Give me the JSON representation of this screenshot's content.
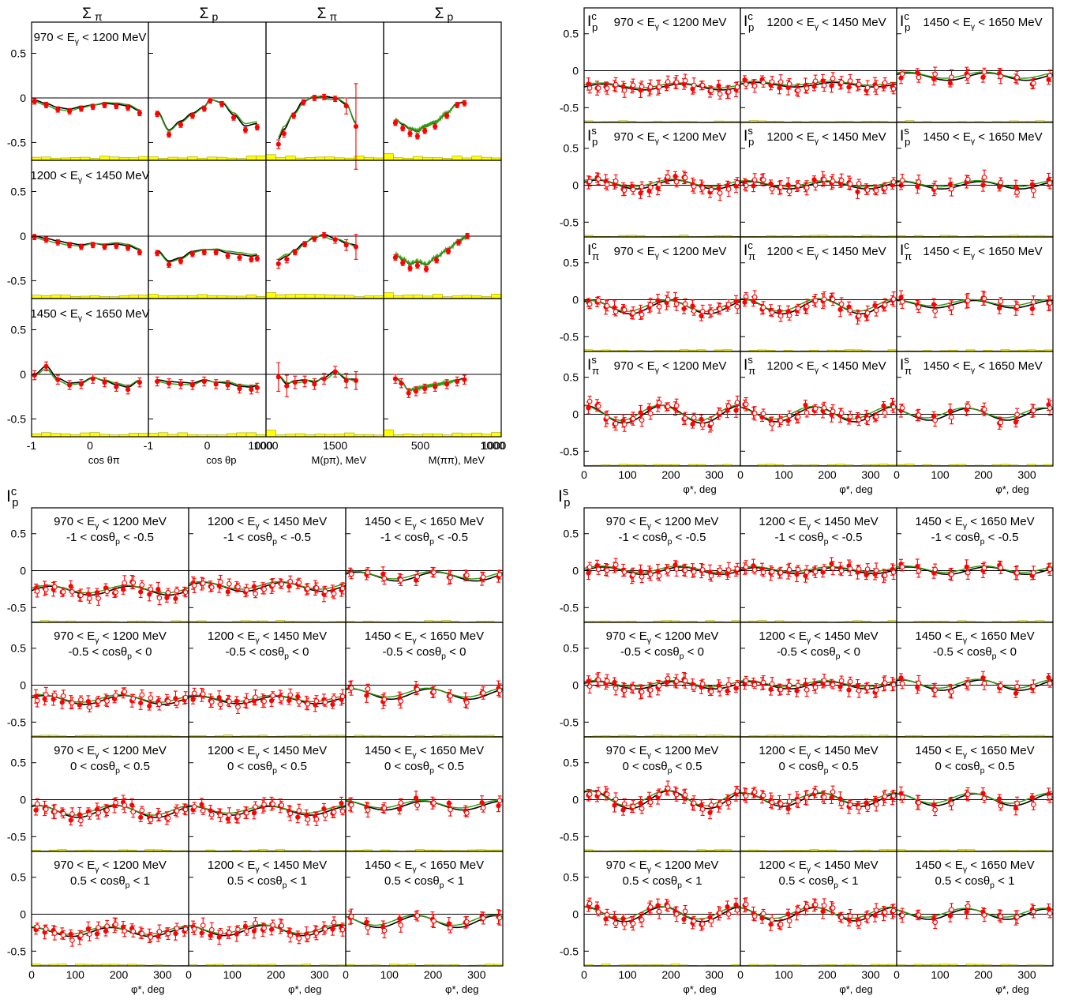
{
  "chart_data": [
    {
      "id": "sigma-block",
      "type": "scatter",
      "rows": [
        "970 < Eγ < 1200 MeV",
        "1200 < Eγ < 1450 MeV",
        "1450 < Eγ < 1650 MeV"
      ],
      "columns": [
        {
          "title": "Σπ",
          "xlabel": "cos θπ",
          "xlim": [
            -1,
            1
          ],
          "xticks": [
            "-1",
            "0"
          ]
        },
        {
          "title": "Σp",
          "xlabel": "cos θp",
          "xlim": [
            -1,
            1
          ],
          "xticks": [
            "-1",
            "0"
          ]
        },
        {
          "title": "Σπ",
          "xlabel": "M(pπ), MeV",
          "xlim": [
            1000,
            1850
          ],
          "xticks": [
            "1000",
            "1500"
          ]
        },
        {
          "title": "Σp",
          "xlabel": "M(ππ), MeV",
          "xlim": [
            250,
            1050
          ],
          "xticks": [
            "500",
            "1000"
          ]
        }
      ],
      "ylim": [
        -0.7,
        0.85
      ],
      "yticks": [
        "0.5",
        "0",
        "-0.5"
      ],
      "panels": [
        [
          {
            "x": [
              -0.95,
              -0.75,
              -0.55,
              -0.35,
              -0.15,
              0.05,
              0.25,
              0.45,
              0.65,
              0.85
            ],
            "y": [
              -0.04,
              -0.08,
              -0.13,
              -0.15,
              -0.12,
              -0.1,
              -0.08,
              -0.09,
              -0.11,
              -0.17
            ],
            "err": 0.03
          },
          {
            "x": [
              -0.85,
              -0.65,
              -0.45,
              -0.25,
              -0.05,
              0.05,
              0.25,
              0.45,
              0.65,
              0.85
            ],
            "y": [
              -0.18,
              -0.41,
              -0.3,
              -0.2,
              -0.12,
              -0.03,
              -0.07,
              -0.22,
              -0.36,
              -0.33
            ],
            "err": 0.03
          },
          {
            "x": [
              1090,
              1130,
              1200,
              1270,
              1350,
              1420,
              1500,
              1580,
              1650
            ],
            "y": [
              -0.52,
              -0.4,
              -0.2,
              -0.05,
              0.0,
              0.01,
              -0.01,
              -0.09,
              -0.32
            ],
            "err": [
              0.05,
              0.04,
              0.03,
              0.03,
              0.03,
              0.03,
              0.03,
              0.09,
              0.48
            ]
          },
          {
            "x": [
              330,
              380,
              430,
              480,
              530,
              600,
              680,
              750,
              800
            ],
            "y": [
              -0.28,
              -0.34,
              -0.4,
              -0.43,
              -0.37,
              -0.32,
              -0.2,
              -0.08,
              -0.06
            ],
            "err": 0.03
          }
        ],
        [
          {
            "x": [
              -0.95,
              -0.75,
              -0.55,
              -0.35,
              -0.15,
              0.05,
              0.25,
              0.45,
              0.65,
              0.85
            ],
            "y": [
              -0.01,
              -0.04,
              -0.07,
              -0.1,
              -0.12,
              -0.1,
              -0.12,
              -0.11,
              -0.13,
              -0.18
            ],
            "err": 0.03
          },
          {
            "x": [
              -0.85,
              -0.65,
              -0.45,
              -0.25,
              -0.05,
              0.15,
              0.35,
              0.55,
              0.75,
              0.85
            ],
            "y": [
              -0.19,
              -0.32,
              -0.28,
              -0.2,
              -0.18,
              -0.18,
              -0.22,
              -0.24,
              -0.26,
              -0.25
            ],
            "err": 0.03
          },
          {
            "x": [
              1090,
              1150,
              1210,
              1280,
              1350,
              1420,
              1500,
              1580,
              1650
            ],
            "y": [
              -0.31,
              -0.26,
              -0.18,
              -0.09,
              -0.03,
              0.01,
              -0.04,
              -0.1,
              -0.12
            ],
            "err": [
              0.05,
              0.04,
              0.03,
              0.03,
              0.03,
              0.03,
              0.04,
              0.06,
              0.14
            ]
          },
          {
            "x": [
              330,
              380,
              430,
              480,
              540,
              610,
              690,
              760,
              820
            ],
            "y": [
              -0.24,
              -0.3,
              -0.36,
              -0.33,
              -0.37,
              -0.27,
              -0.17,
              -0.07,
              0.0
            ],
            "err": 0.03
          }
        ],
        [
          {
            "x": [
              -0.95,
              -0.75,
              -0.55,
              -0.35,
              -0.15,
              0.05,
              0.25,
              0.45,
              0.65,
              0.85
            ],
            "y": [
              -0.01,
              0.09,
              -0.06,
              -0.12,
              -0.11,
              -0.05,
              -0.09,
              -0.14,
              -0.17,
              -0.09
            ],
            "err": 0.05
          },
          {
            "x": [
              -0.85,
              -0.65,
              -0.45,
              -0.25,
              -0.05,
              0.15,
              0.35,
              0.55,
              0.75,
              0.85
            ],
            "y": [
              -0.08,
              -0.1,
              -0.11,
              -0.12,
              -0.08,
              -0.11,
              -0.12,
              -0.16,
              -0.17,
              -0.15
            ],
            "err": 0.05
          },
          {
            "x": [
              1090,
              1150,
              1210,
              1280,
              1350,
              1420,
              1500,
              1580,
              1650
            ],
            "y": [
              -0.03,
              -0.13,
              -0.09,
              -0.08,
              -0.11,
              -0.05,
              0.03,
              -0.07,
              -0.07
            ],
            "err": [
              0.16,
              0.12,
              0.07,
              0.06,
              0.06,
              0.06,
              0.06,
              0.08,
              0.1
            ]
          },
          {
            "x": [
              330,
              370,
              420,
              470,
              530,
              600,
              680,
              750,
              800
            ],
            "y": [
              -0.05,
              -0.1,
              -0.21,
              -0.19,
              -0.16,
              -0.14,
              -0.11,
              -0.08,
              -0.06
            ],
            "err": 0.05
          }
        ]
      ]
    },
    {
      "id": "I-phi-block",
      "type": "scatter",
      "columns": [
        "970 < Eγ < 1200 MeV",
        "1200 < Eγ < 1450 MeV",
        "1450 < Eγ < 1650 MeV"
      ],
      "rows": [
        {
          "symbol": "Ip",
          "sup": "c"
        },
        {
          "symbol": "Ip",
          "sup": "s"
        },
        {
          "symbol": "Iπ",
          "sup": "c"
        },
        {
          "symbol": "Iπ",
          "sup": "s"
        }
      ],
      "xlabel": "φ*, deg",
      "xlim": [
        0,
        360
      ],
      "xticks": [
        "0",
        "100",
        "200",
        "300"
      ],
      "ylim": [
        -0.7,
        0.85
      ],
      "yticks": [
        "0.5",
        "0",
        "-0.5"
      ],
      "panel_amplitudes": [
        [
          [
            -0.22,
            0.04
          ],
          [
            -0.19,
            0.03
          ],
          [
            -0.08,
            0.05
          ]
        ],
        [
          [
            0.01,
            0.06
          ],
          [
            0.0,
            0.05
          ],
          [
            0.0,
            0.05
          ]
        ],
        [
          [
            -0.1,
            0.09
          ],
          [
            -0.09,
            0.1
          ],
          [
            -0.06,
            0.05
          ]
        ],
        [
          [
            0.0,
            0.12
          ],
          [
            0.0,
            0.1
          ],
          [
            0.0,
            0.08
          ]
        ]
      ]
    },
    {
      "id": "Ipc-block",
      "type": "scatter",
      "title": "Ip",
      "title_sup": "c",
      "columns": [
        "970 < Eγ < 1200 MeV",
        "1200 < Eγ < 1450 MeV",
        "1450 < Eγ < 1650 MeV"
      ],
      "rows": [
        "-1 < cosθp < -0.5",
        "-0.5 < cosθp < 0",
        "0 < cosθp < 0.5",
        "0.5 < cosθp < 1"
      ],
      "xlabel": "φ*, deg",
      "xlim": [
        0,
        360
      ],
      "xticks": [
        "0",
        "100",
        "200",
        "300"
      ],
      "ylim": [
        -0.7,
        0.85
      ],
      "yticks": [
        "0.5",
        "0",
        "-0.5"
      ],
      "panel_amplitudes": [
        [
          [
            -0.27,
            0.06
          ],
          [
            -0.22,
            0.06
          ],
          [
            -0.08,
            0.06
          ]
        ],
        [
          [
            -0.2,
            0.06
          ],
          [
            -0.2,
            0.05
          ],
          [
            -0.12,
            0.07
          ]
        ],
        [
          [
            -0.16,
            0.08
          ],
          [
            -0.15,
            0.06
          ],
          [
            -0.08,
            0.06
          ]
        ],
        [
          [
            -0.24,
            0.06
          ],
          [
            -0.22,
            0.07
          ],
          [
            -0.1,
            0.08
          ]
        ]
      ]
    },
    {
      "id": "Ips-block",
      "type": "scatter",
      "title": "Ip",
      "title_sup": "s",
      "columns": [
        "970 < Eγ < 1200 MeV",
        "1200 < Eγ < 1450 MeV",
        "1450 < Eγ < 1650 MeV"
      ],
      "rows": [
        "-1 < cosθp < -0.5",
        "-0.5 < cosθp < 0",
        "0 < cosθp < 0.5",
        "0.5 < cosθp < 1"
      ],
      "xlabel": "φ*, deg",
      "xlim": [
        0,
        360
      ],
      "xticks": [
        "0",
        "100",
        "200",
        "300"
      ],
      "ylim": [
        -0.7,
        0.85
      ],
      "yticks": [
        "0.5",
        "0",
        "-0.5"
      ],
      "panel_amplitudes": [
        [
          [
            0.0,
            0.05
          ],
          [
            0.0,
            0.04
          ],
          [
            0.0,
            0.05
          ]
        ],
        [
          [
            0.0,
            0.05
          ],
          [
            0.0,
            0.05
          ],
          [
            0.0,
            0.07
          ]
        ],
        [
          [
            0.0,
            0.12
          ],
          [
            0.0,
            0.09
          ],
          [
            0.0,
            0.08
          ]
        ],
        [
          [
            0.0,
            0.1
          ],
          [
            0.0,
            0.09
          ],
          [
            0.0,
            0.07
          ]
        ]
      ]
    }
  ],
  "colors": {
    "data": "#ff0000",
    "fit_primary": "#000000",
    "fit_secondary": "#2e9a10",
    "systematics": "#ffff00"
  }
}
